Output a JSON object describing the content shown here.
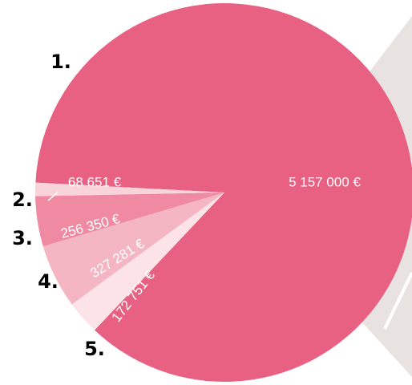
{
  "chart_data": {
    "type": "pie",
    "categories": [
      "1.",
      "2.",
      "3.",
      "4.",
      "5."
    ],
    "values": [
      5157000,
      68651,
      256350,
      327281,
      172751
    ],
    "value_labels": [
      "5 157 000 €",
      "68 651 €",
      "256 350 €",
      "327 281 €",
      "172 751 €"
    ],
    "colors": [
      "#e86183",
      "#f9d3da",
      "#ef8aa2",
      "#f5b6c4",
      "#fbe3e8"
    ]
  }
}
